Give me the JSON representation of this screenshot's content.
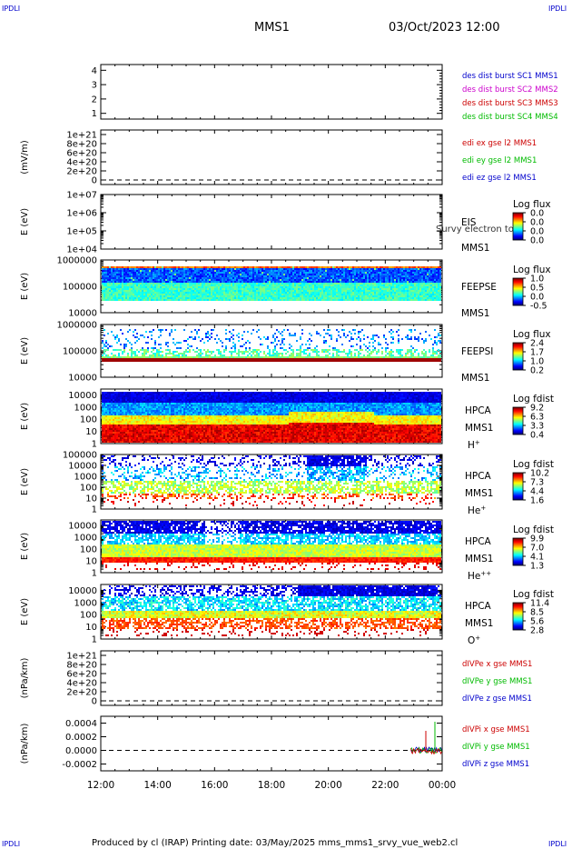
{
  "corner_label": "IPDLI",
  "header": {
    "mission": "MMS1",
    "datetime": "03/Oct/2023 12:00"
  },
  "footer": "Produced by cl (IRAP)   Printing date: 03/May/2025   mms_mms1_srvy_vue_web2.cl",
  "x_ticks": [
    "12:00",
    "14:00",
    "16:00",
    "18:00",
    "20:00",
    "22:00",
    "00:00"
  ],
  "chart_data": [
    {
      "type": "line",
      "id": "p1",
      "ylabel": "",
      "yticks": [
        "1",
        "2",
        "3",
        "4"
      ],
      "ylim": [
        0.6,
        4.4
      ],
      "legend": [
        {
          "text": "des dist burst SC1 MMS1",
          "color": "#0000cc"
        },
        {
          "text": "des dist burst SC2 MMS2",
          "color": "#cc00cc"
        },
        {
          "text": "des dist burst SC3 MMS3",
          "color": "#cc0000"
        },
        {
          "text": "des dist burst SC4 MMS4",
          "color": "#00bb00"
        }
      ]
    },
    {
      "type": "line",
      "id": "p2",
      "ylabel": "(mV/m)",
      "yticks": [
        "0",
        "2e+20",
        "4e+20",
        "6e+20",
        "8e+20",
        "1e+21"
      ],
      "ylim": [
        -1e+20,
        1.1e+21
      ],
      "zero_line": true,
      "legend": [
        {
          "text": "edi ex gse l2 MMS1",
          "color": "#cc0000"
        },
        {
          "text": "edi ey gse l2 MMS1",
          "color": "#00bb00"
        },
        {
          "text": "edi ez gse l2 MMS1",
          "color": "#0000cc"
        }
      ]
    },
    {
      "type": "heatmap",
      "id": "p3",
      "ylabel": "E (eV)",
      "yticks": [
        "1e+04",
        "1e+05",
        "1e+06",
        "1e+07"
      ],
      "log": true,
      "ylim": [
        10000,
        10000000
      ],
      "right_labels": [
        "EIS",
        "MMS1"
      ],
      "overlay_text": "Survy electron to",
      "cbar": {
        "title": "Log flux",
        "ticks": [
          "0.0",
          "0.0",
          "0.0",
          "0.0"
        ]
      },
      "pattern": "empty"
    },
    {
      "type": "heatmap",
      "id": "p4",
      "ylabel": "E (eV)",
      "yticks": [
        "10000",
        "100000",
        "1000000"
      ],
      "log": true,
      "ylim": [
        10000,
        1000000
      ],
      "right_labels": [
        "FEEPSE",
        "MMS1"
      ],
      "cbar": {
        "title": "Log flux",
        "ticks": [
          "1.0",
          "0.5",
          "0.0",
          "-0.5"
        ]
      },
      "pattern": "feepse"
    },
    {
      "type": "heatmap",
      "id": "p5",
      "ylabel": "E (eV)",
      "yticks": [
        "10000",
        "100000",
        "1000000"
      ],
      "log": true,
      "ylim": [
        10000,
        1000000
      ],
      "right_labels": [
        "FEEPSI",
        "MMS1"
      ],
      "cbar": {
        "title": "Log flux",
        "ticks": [
          "2.4",
          "1.7",
          "1.0",
          "0.2"
        ]
      },
      "pattern": "feepsi"
    },
    {
      "type": "heatmap",
      "id": "p6",
      "ylabel": "E (eV)",
      "yticks": [
        "1",
        "10",
        "100",
        "1000",
        "10000"
      ],
      "log": true,
      "ylim": [
        1,
        30000
      ],
      "right_labels": [
        "HPCA",
        "MMS1",
        "H+"
      ],
      "cbar": {
        "title": "Log fdist",
        "ticks": [
          "9.2",
          "6.3",
          "3.3",
          "0.4"
        ]
      },
      "pattern": "hplus"
    },
    {
      "type": "heatmap",
      "id": "p7",
      "ylabel": "E (eV)",
      "yticks": [
        "1",
        "10",
        "100",
        "1000",
        "10000",
        "100000"
      ],
      "log": true,
      "ylim": [
        1,
        100000
      ],
      "right_labels": [
        "HPCA",
        "MMS1",
        "He+"
      ],
      "cbar": {
        "title": "Log fdist",
        "ticks": [
          "10.2",
          "7.3",
          "4.4",
          "1.6"
        ]
      },
      "pattern": "heplus"
    },
    {
      "type": "heatmap",
      "id": "p8",
      "ylabel": "E (eV)",
      "yticks": [
        "1",
        "10",
        "100",
        "1000",
        "10000"
      ],
      "log": true,
      "ylim": [
        1,
        30000
      ],
      "right_labels": [
        "HPCA",
        "MMS1",
        "He++"
      ],
      "cbar": {
        "title": "Log fdist",
        "ticks": [
          "9.9",
          "7.0",
          "4.1",
          "1.3"
        ]
      },
      "pattern": "hepp"
    },
    {
      "type": "heatmap",
      "id": "p9",
      "ylabel": "E (eV)",
      "yticks": [
        "1",
        "10",
        "100",
        "1000",
        "10000"
      ],
      "log": true,
      "ylim": [
        1,
        30000
      ],
      "right_labels": [
        "HPCA",
        "MMS1",
        "O+"
      ],
      "cbar": {
        "title": "Log fdist",
        "ticks": [
          "11.4",
          "8.5",
          "5.6",
          "2.8"
        ]
      },
      "pattern": "oplus"
    },
    {
      "type": "line",
      "id": "p10",
      "ylabel": "(nPa/km)",
      "yticks": [
        "0",
        "2e+20",
        "4e+20",
        "6e+20",
        "8e+20",
        "1e+21"
      ],
      "ylim": [
        -1e+20,
        1.1e+21
      ],
      "zero_line": true,
      "legend": [
        {
          "text": "dIVPe x gse MMS1",
          "color": "#cc0000"
        },
        {
          "text": "dIVPe y gse MMS1",
          "color": "#00bb00"
        },
        {
          "text": "dIVPe z gse MMS1",
          "color": "#0000cc"
        }
      ]
    },
    {
      "type": "line",
      "id": "p11",
      "ylabel": "(nPa/km)",
      "yticks": [
        "-0.0002",
        "0.0000",
        "0.0002",
        "0.0004"
      ],
      "ylim": [
        -0.0003,
        0.0005
      ],
      "zero_line": true,
      "legend": [
        {
          "text": "dIVPi x gse MMS1",
          "color": "#cc0000"
        },
        {
          "text": "dIVPi y gse MMS1",
          "color": "#00bb00"
        },
        {
          "text": "dIVPi z gse MMS1",
          "color": "#0000cc"
        }
      ],
      "series_segment": {
        "x_start_hour": 22.9,
        "x_end_hour": 24.0
      }
    }
  ]
}
